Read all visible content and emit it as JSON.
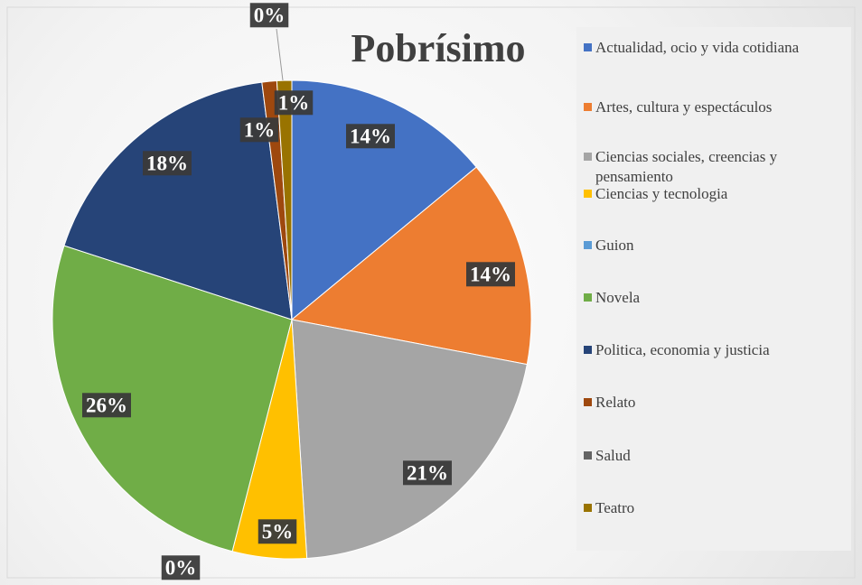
{
  "chart_data": {
    "type": "pie",
    "title": "Pobrísimo",
    "categories": [
      "Actualidad, ocio y vida cotidiana",
      "Artes, cultura y espectáculos",
      "Ciencias sociales, creencias y pensamiento",
      "Ciencias y tecnologia",
      "Guion",
      "Novela",
      "Politica, economia y justicia",
      "Relato",
      "Salud",
      "Teatro"
    ],
    "values": [
      14,
      14,
      21,
      5,
      0,
      26,
      18,
      1,
      0,
      1
    ],
    "value_labels": [
      "14%",
      "14%",
      "21%",
      "5%",
      "0%",
      "26%",
      "18%",
      "1%",
      "0%",
      "1%"
    ],
    "colors": [
      "#4472c4",
      "#ed7d31",
      "#a5a5a5",
      "#ffc000",
      "#5b9bd5",
      "#70ad47",
      "#264478",
      "#9e480e",
      "#636363",
      "#997300"
    ],
    "legend": "right"
  }
}
